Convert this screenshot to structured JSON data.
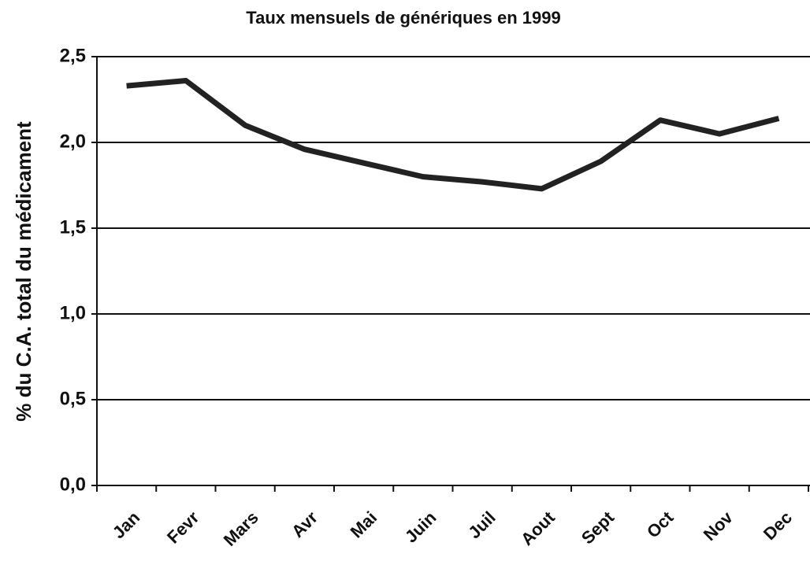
{
  "chart_data": {
    "type": "line",
    "title": "Taux mensuels de génériques en 1999",
    "ylabel": "% du C.A. total du médicament",
    "categories": [
      "Jan",
      "Fevr",
      "Mars",
      "Avr",
      "Mai",
      "Juin",
      "Juil",
      "Aout",
      "Sept",
      "Oct",
      "Nov",
      "Dec"
    ],
    "values": [
      2.33,
      2.36,
      2.1,
      1.96,
      1.88,
      1.8,
      1.77,
      1.73,
      1.89,
      2.13,
      2.05,
      2.14
    ],
    "color": "#222222",
    "ylim": [
      0,
      2.5
    ],
    "yticks": [
      {
        "value": 0,
        "label": "0,0"
      },
      {
        "value": 0.5,
        "label": "0,5"
      },
      {
        "value": 1,
        "label": "1,0"
      },
      {
        "value": 1.5,
        "label": "1,5"
      },
      {
        "value": 2,
        "label": "2,0"
      },
      {
        "value": 2.5,
        "label": "2,5"
      }
    ],
    "grid": true
  }
}
